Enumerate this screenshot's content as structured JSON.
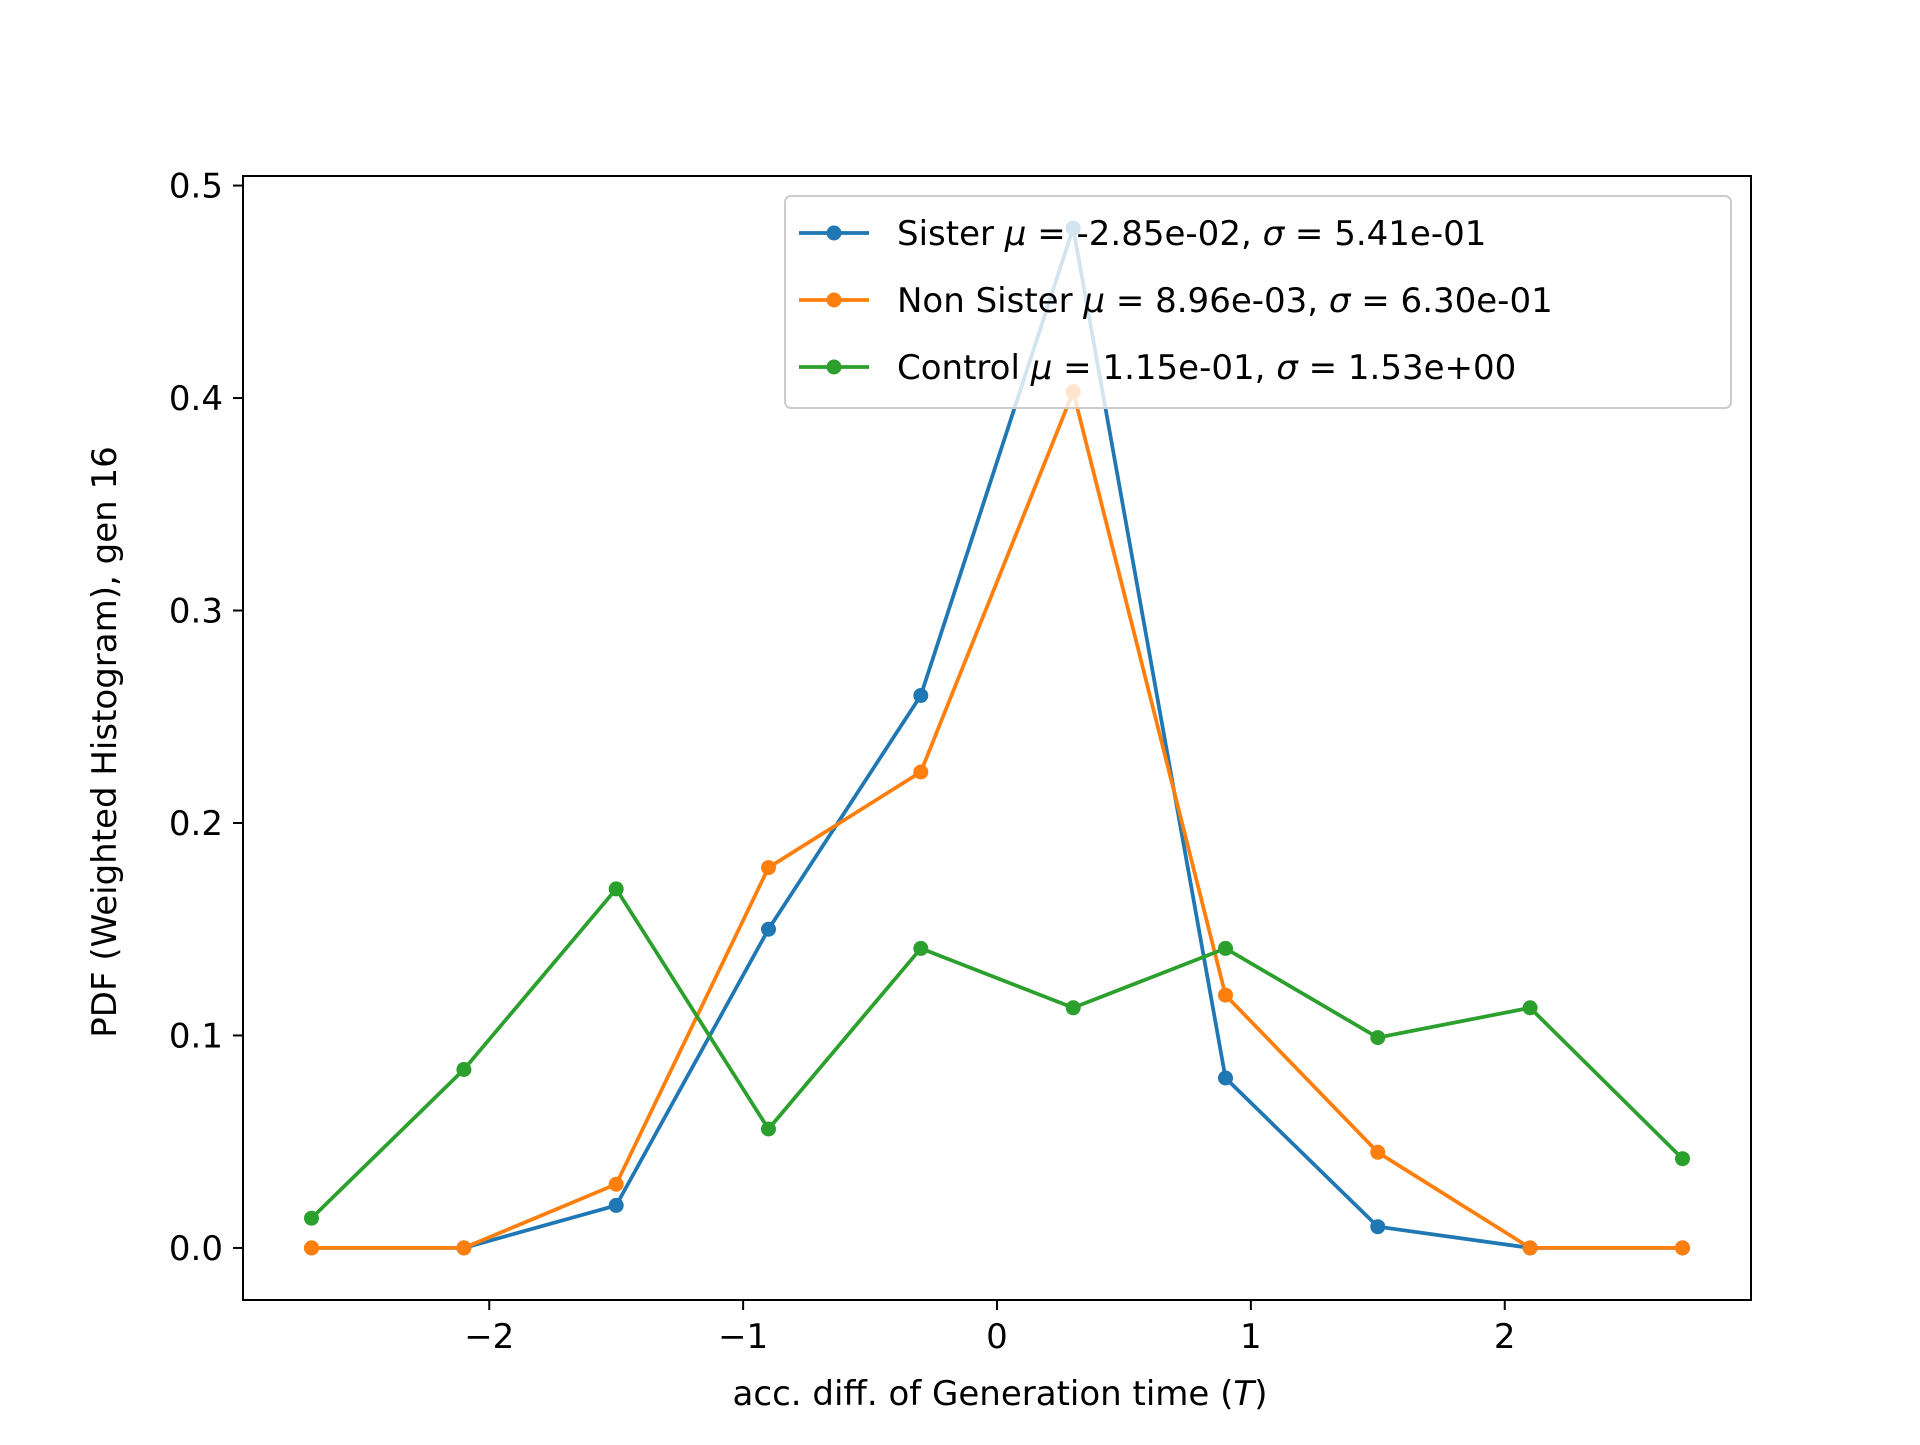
{
  "chart_data": {
    "type": "line",
    "title": "",
    "xlabel": "acc. diff. of Generation time (T)",
    "xlabel_parts": {
      "prefix": "acc. diff. of Generation time (",
      "var": "T",
      "suffix": ")"
    },
    "ylabel": "PDF (Weighted Histogram), gen 16",
    "xlim": [
      -2.97,
      2.97
    ],
    "ylim": [
      -0.0245,
      0.5045
    ],
    "x_ticks": [
      -2,
      -1,
      0,
      1,
      2
    ],
    "x_tick_labels": [
      "−2",
      "−1",
      "0",
      "1",
      "2"
    ],
    "y_ticks": [
      0.0,
      0.1,
      0.2,
      0.3,
      0.4,
      0.5
    ],
    "y_tick_labels": [
      "0.0",
      "0.1",
      "0.2",
      "0.3",
      "0.4",
      "0.5"
    ],
    "grid": false,
    "legend_position": "top-right",
    "x": [
      -2.7,
      -2.1,
      -1.5,
      -0.9,
      -0.3,
      0.3,
      0.9,
      1.5,
      2.1,
      2.7
    ],
    "series": [
      {
        "name": "Sister",
        "mu": "-2.85e-02",
        "sigma": "5.41e-01",
        "color": "#1f77b4",
        "values": [
          0.0,
          0.0,
          0.02,
          0.15,
          0.26,
          0.48,
          0.08,
          0.01,
          0.0,
          0.0
        ]
      },
      {
        "name": "Non Sister",
        "mu": "8.96e-03",
        "sigma": "6.30e-01",
        "color": "#ff7f0e",
        "values": [
          0.0,
          0.0,
          0.03,
          0.179,
          0.224,
          0.403,
          0.119,
          0.045,
          0.0,
          0.0
        ]
      },
      {
        "name": "Control",
        "mu": "1.15e-01",
        "sigma": "1.53e+00",
        "color": "#2ca02c",
        "values": [
          0.014,
          0.084,
          0.169,
          0.056,
          0.141,
          0.113,
          0.141,
          0.099,
          0.113,
          0.042
        ]
      }
    ]
  }
}
